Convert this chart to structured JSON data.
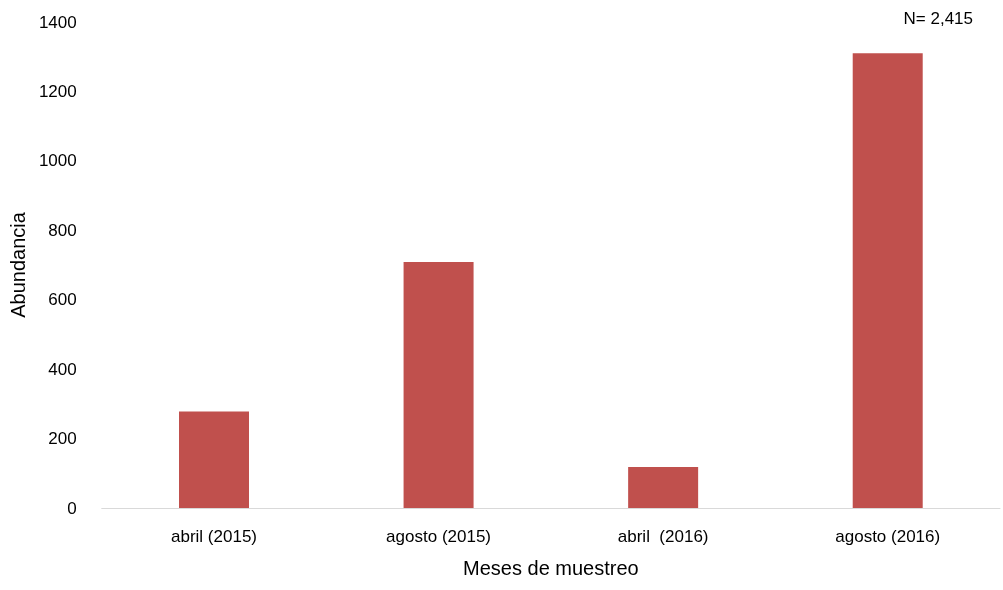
{
  "chart_data": {
    "type": "bar",
    "xlabel": "Meses de muestreo",
    "ylabel": "Abundancia",
    "categories": [
      "abril (2015)",
      "agosto (2015)",
      "abril  (2016)",
      "agosto (2016)"
    ],
    "values": [
      278,
      709,
      118,
      1310
    ],
    "color": "#c0504d",
    "ylim": [
      0,
      1400
    ],
    "yticks": [
      0,
      200,
      400,
      600,
      800,
      1000,
      1200,
      1400
    ],
    "grid": false,
    "annotations": [
      "N= 2,415"
    ]
  }
}
